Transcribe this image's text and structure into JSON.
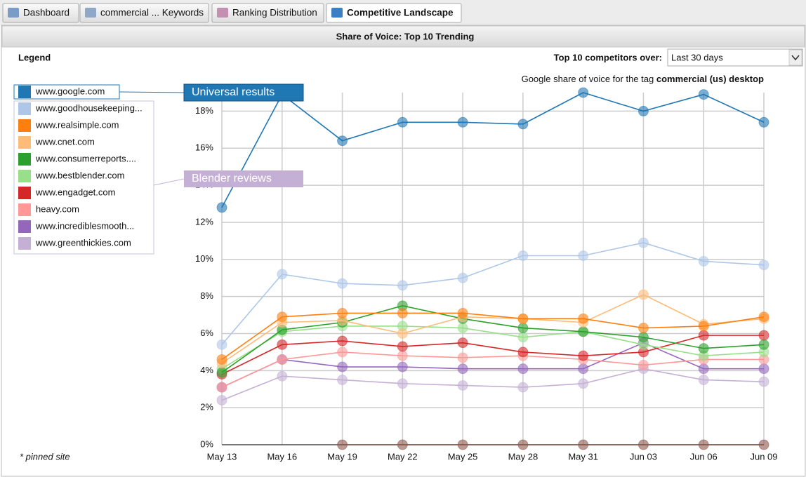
{
  "tabs": [
    "Dashboard",
    "commercial ... Keywords",
    "Ranking Distribution",
    "Competitive Landscape"
  ],
  "panel_title": "Share of Voice: Top 10 Trending",
  "legend_title": "Legend",
  "period_label": "Top 10 competitors over:",
  "period_value": "Last 30 days",
  "footnote": "* pinned site",
  "chart_data": {
    "type": "line",
    "title": [
      "Google share of voice for the tag",
      "commercial (us) desktop"
    ],
    "categories": [
      "May 13",
      "May 16",
      "May 19",
      "May 22",
      "May 25",
      "May 28",
      "May 31",
      "Jun 03",
      "Jun 06",
      "Jun 09"
    ],
    "ylim": [
      0,
      19
    ],
    "yticks": [
      {
        "value": 0,
        "label": "0%"
      },
      {
        "value": 2,
        "label": "2%"
      },
      {
        "value": 4,
        "label": "4%"
      },
      {
        "value": 6,
        "label": "6%"
      },
      {
        "value": 8,
        "label": "8%"
      },
      {
        "value": 10,
        "label": "10%"
      },
      {
        "value": 12,
        "label": "12%"
      },
      {
        "value": 14,
        "label": "14%"
      },
      {
        "value": 16,
        "label": "16%"
      },
      {
        "value": 18,
        "label": "18%"
      }
    ],
    "grid": true,
    "series": [
      {
        "name": "www.google.com",
        "color": "#1f77b4",
        "values": [
          12.8,
          18.9,
          16.4,
          17.4,
          17.4,
          17.3,
          19.0,
          18.0,
          18.9,
          17.4
        ]
      },
      {
        "name": "www.goodhousekeeping...",
        "color": "#aec7e8",
        "values": [
          5.4,
          9.2,
          8.7,
          8.6,
          9.0,
          10.2,
          10.2,
          10.9,
          9.9,
          9.7
        ]
      },
      {
        "name": "www.realsimple.com",
        "color": "#ff7f0e",
        "values": [
          4.6,
          6.9,
          7.1,
          7.1,
          7.1,
          6.8,
          6.8,
          6.3,
          6.4,
          6.9
        ]
      },
      {
        "name": "www.cnet.com",
        "color": "#ffbb78",
        "values": [
          4.4,
          6.6,
          6.7,
          6.0,
          6.9,
          6.8,
          6.6,
          8.1,
          6.5,
          6.8
        ]
      },
      {
        "name": "www.consumerreports....",
        "color": "#2ca02c",
        "values": [
          3.9,
          6.2,
          6.6,
          7.5,
          6.8,
          6.3,
          6.1,
          5.8,
          5.2,
          5.4
        ]
      },
      {
        "name": "www.bestblender.com",
        "color": "#98df8a",
        "values": [
          4.1,
          6.1,
          6.4,
          6.4,
          6.3,
          5.8,
          6.1,
          5.4,
          4.8,
          5.0
        ]
      },
      {
        "name": "www.engadget.com",
        "color": "#d62728",
        "values": [
          3.8,
          5.4,
          5.6,
          5.3,
          5.5,
          5.0,
          4.8,
          5.0,
          5.9,
          5.9
        ]
      },
      {
        "name": "heavy.com",
        "color": "#ff9896",
        "values": [
          3.1,
          4.6,
          5.0,
          4.8,
          4.7,
          4.8,
          4.6,
          4.3,
          4.6,
          4.6
        ]
      },
      {
        "name": "www.incrediblesmooth...",
        "color": "#9467bd",
        "values": [
          3.1,
          4.6,
          4.2,
          4.2,
          4.1,
          4.1,
          4.1,
          5.5,
          4.1,
          4.1
        ]
      },
      {
        "name": "www.greenthickies.com",
        "color": "#c5b0d5",
        "values": [
          2.4,
          3.7,
          3.5,
          3.3,
          3.2,
          3.1,
          3.3,
          4.1,
          3.5,
          3.4
        ]
      },
      {
        "color": "#8c564b",
        "values": [
          null,
          null,
          0,
          0,
          0,
          0,
          0,
          0,
          0,
          0
        ]
      }
    ],
    "annotations": [
      {
        "text": "Universal results",
        "color": "#1f77b4",
        "series": 0
      },
      {
        "text": "Blender reviews",
        "color": "#c5b0d5",
        "series": 5
      }
    ]
  }
}
